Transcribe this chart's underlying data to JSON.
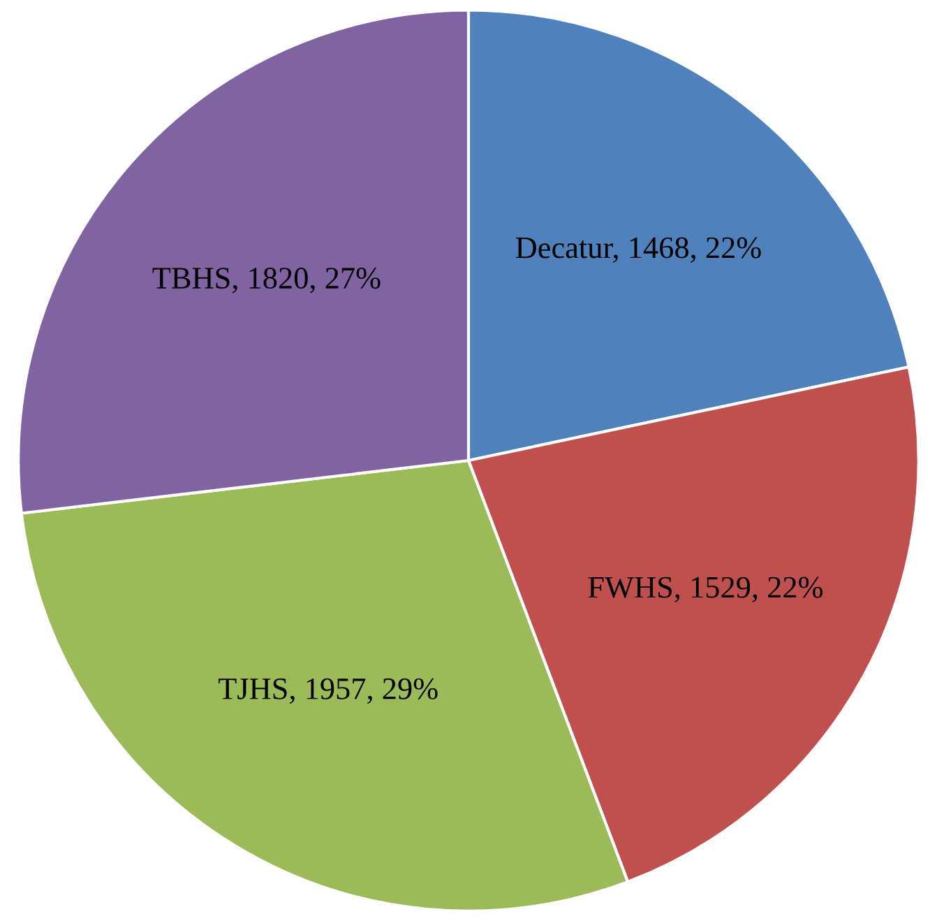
{
  "chart_data": {
    "type": "pie",
    "categories": [
      "Decatur",
      "FWHS",
      "TJHS",
      "TBHS"
    ],
    "values": [
      1468,
      1529,
      1957,
      1820
    ],
    "value_labels": [
      "1468, 22%",
      "1529, 22%",
      "1957, 29%",
      "1820, 27%"
    ],
    "colors": [
      "#4f81bd",
      "#c0504d",
      "#9bbb59",
      "#8064a2"
    ],
    "legend": false
  }
}
